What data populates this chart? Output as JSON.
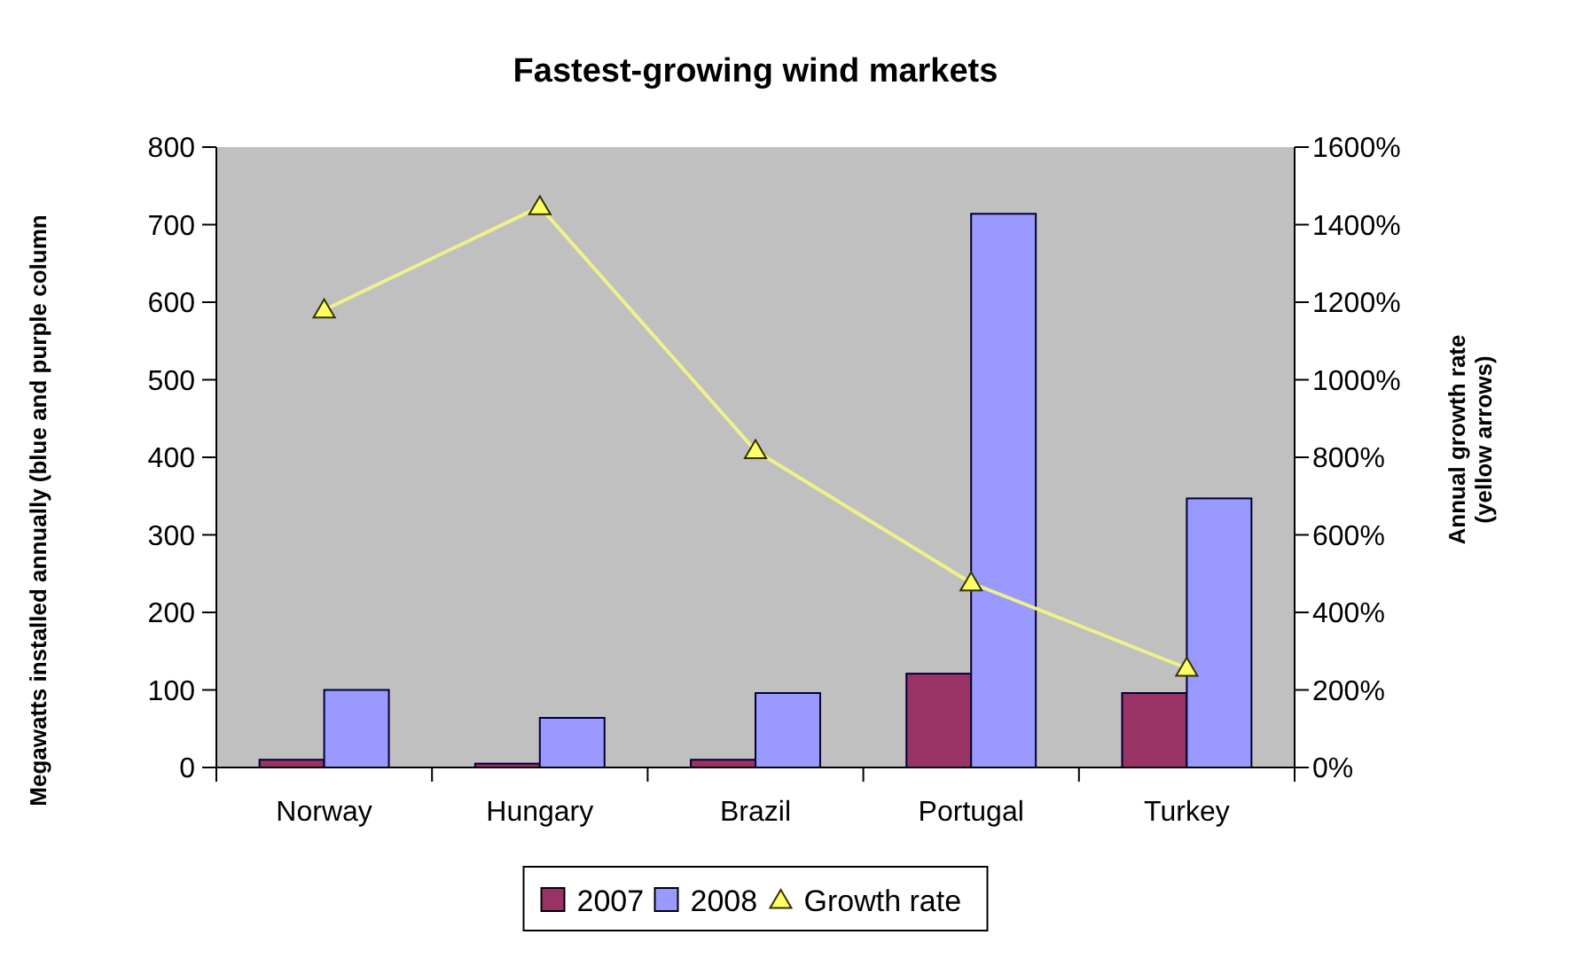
{
  "chart_data": {
    "type": "bar",
    "title": "Fastest-growing wind markets",
    "ylabel": "Megawatts installed annually (blue and purple column",
    "y2label": "Annual growth rate\n(yellow arrows)",
    "categories": [
      "Norway",
      "Hungary",
      "Brazil",
      "Portugal",
      "Turkey"
    ],
    "series": [
      {
        "name": "2007",
        "color": "#993366",
        "values": [
          10,
          5,
          10,
          121,
          96
        ]
      },
      {
        "name": "2008",
        "color": "#9999ff",
        "values": [
          100,
          64,
          96,
          714,
          347
        ]
      },
      {
        "name": "Growth rate",
        "type": "line",
        "axis": "y2",
        "color": "#f0f08c",
        "marker": "triangle",
        "values": [
          1180,
          1446,
          817,
          476,
          256
        ]
      }
    ],
    "ylim": [
      0,
      800
    ],
    "yticks": [
      0,
      100,
      200,
      300,
      400,
      500,
      600,
      700,
      800
    ],
    "y2lim": [
      0,
      1600
    ],
    "y2ticks": [
      {
        "value": 0,
        "label": "0%"
      },
      {
        "value": 200,
        "label": "200%"
      },
      {
        "value": 400,
        "label": "400%"
      },
      {
        "value": 600,
        "label": "600%"
      },
      {
        "value": 800,
        "label": "800%"
      },
      {
        "value": 1000,
        "label": "1000%"
      },
      {
        "value": 1200,
        "label": "1200%"
      },
      {
        "value": 1400,
        "label": "1400%"
      },
      {
        "value": 1600,
        "label": "1600%"
      }
    ],
    "grid": false,
    "legend": "bottom"
  }
}
